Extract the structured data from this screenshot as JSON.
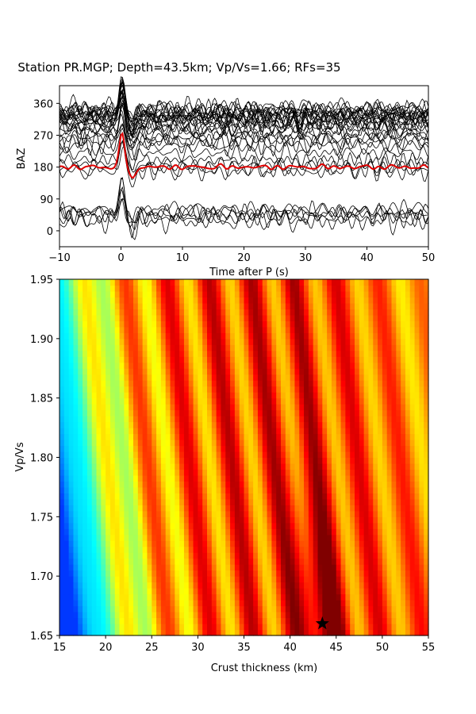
{
  "title": "Station PR.MGP; Depth=43.5km; Vp/Vs=1.66; RFs=35",
  "chart_data": [
    {
      "type": "line",
      "name": "receiver-functions-by-baz",
      "xlabel": "Time after P (s)",
      "ylabel": "BAZ",
      "xlim": [
        -10,
        50
      ],
      "ylim": [
        -45,
        410
      ],
      "xticks": [
        -10,
        0,
        10,
        20,
        30,
        40,
        50
      ],
      "yticks": [
        0,
        90,
        180,
        270,
        360
      ],
      "trace_count": 35,
      "trace_baz": [
        25,
        35,
        45,
        50,
        55,
        60,
        170,
        175,
        185,
        200,
        220,
        240,
        250,
        255,
        265,
        275,
        280,
        290,
        295,
        300,
        305,
        310,
        315,
        318,
        320,
        322,
        325,
        328,
        330,
        332,
        335,
        338,
        340,
        345,
        350
      ],
      "stacked_trace_baz": 180,
      "colors": {
        "traces": "#000000",
        "stack": "#e00000"
      }
    },
    {
      "type": "heatmap",
      "name": "h-kappa-stack",
      "xlabel": "Crust thickness (km)",
      "ylabel": "Vp/Vs",
      "xlim": [
        15,
        55
      ],
      "ylim": [
        1.65,
        1.95
      ],
      "xticks": [
        15,
        20,
        25,
        30,
        35,
        40,
        45,
        50,
        55
      ],
      "yticks": [
        "1.65",
        "1.70",
        "1.75",
        "1.80",
        "1.85",
        "1.90",
        "1.95"
      ],
      "colormap": "jet",
      "best_fit": {
        "h_km": 43.5,
        "vpvs": 1.66,
        "marker": "star"
      }
    }
  ]
}
